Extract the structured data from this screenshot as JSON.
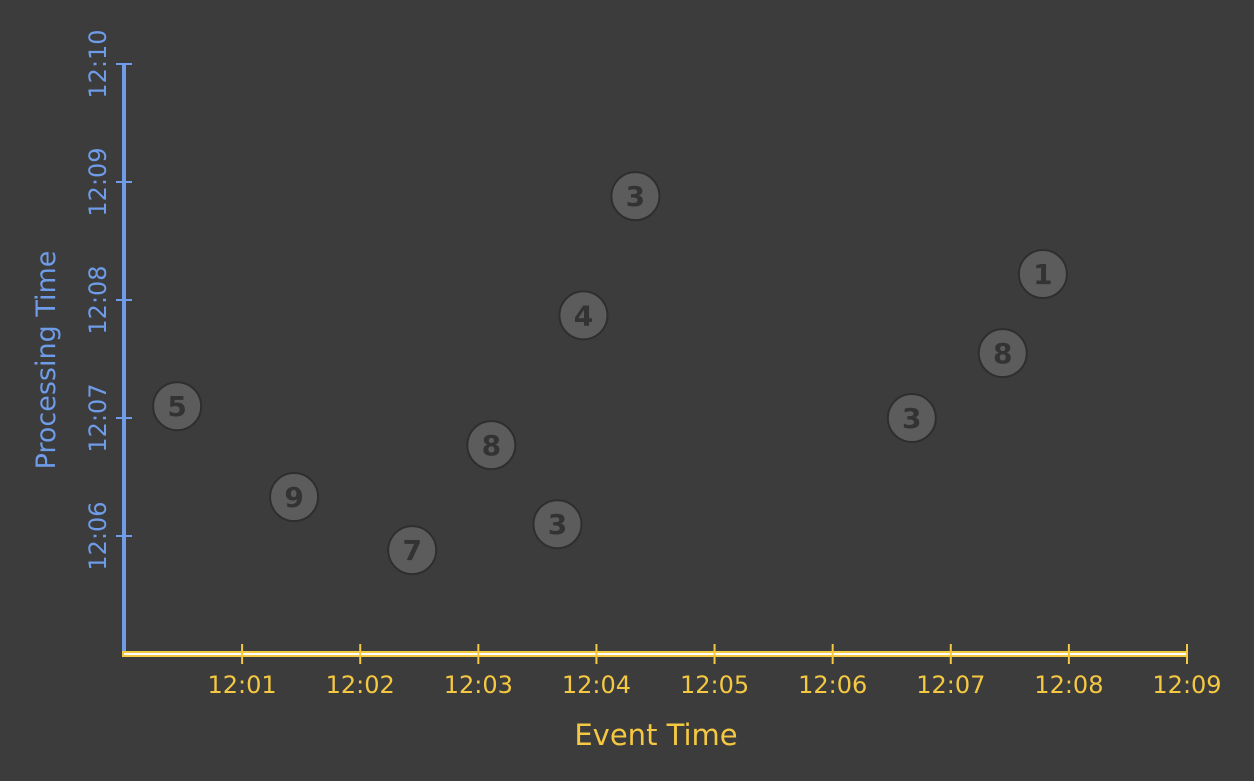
{
  "chart_data": {
    "type": "scatter",
    "title": "",
    "xlabel": "Event Time",
    "ylabel": "Processing Time",
    "x_axis": {
      "tick_labels": [
        "12:01",
        "12:02",
        "12:03",
        "12:04",
        "12:05",
        "12:06",
        "12:07",
        "12:08",
        "12:09"
      ],
      "range_minutes": [
        0,
        9
      ],
      "start": "12:00",
      "end": "12:09"
    },
    "y_axis": {
      "tick_labels": [
        "12:06",
        "12:07",
        "12:08",
        "12:09",
        "12:10"
      ],
      "range_minutes": [
        5,
        10
      ],
      "start": "12:05",
      "end": "12:10"
    },
    "points": [
      {
        "label": "5",
        "x": 0.45,
        "y": 7.1
      },
      {
        "label": "9",
        "x": 1.44,
        "y": 6.33
      },
      {
        "label": "7",
        "x": 2.44,
        "y": 5.88
      },
      {
        "label": "8",
        "x": 3.11,
        "y": 6.77
      },
      {
        "label": "3",
        "x": 3.67,
        "y": 6.1
      },
      {
        "label": "4",
        "x": 3.89,
        "y": 7.87
      },
      {
        "label": "3",
        "x": 4.33,
        "y": 8.88
      },
      {
        "label": "3",
        "x": 6.67,
        "y": 7.0
      },
      {
        "label": "8",
        "x": 7.44,
        "y": 7.55
      },
      {
        "label": "1",
        "x": 7.78,
        "y": 8.22
      }
    ],
    "grid": false,
    "legend": "none",
    "colors": {
      "background": "#3c3c3c",
      "x_axis": "#f5c842",
      "y_axis": "#6f9ce8",
      "point_fill": "#5c5c5c",
      "point_stroke": "#2e2e2e",
      "point_text": "#333333"
    }
  }
}
